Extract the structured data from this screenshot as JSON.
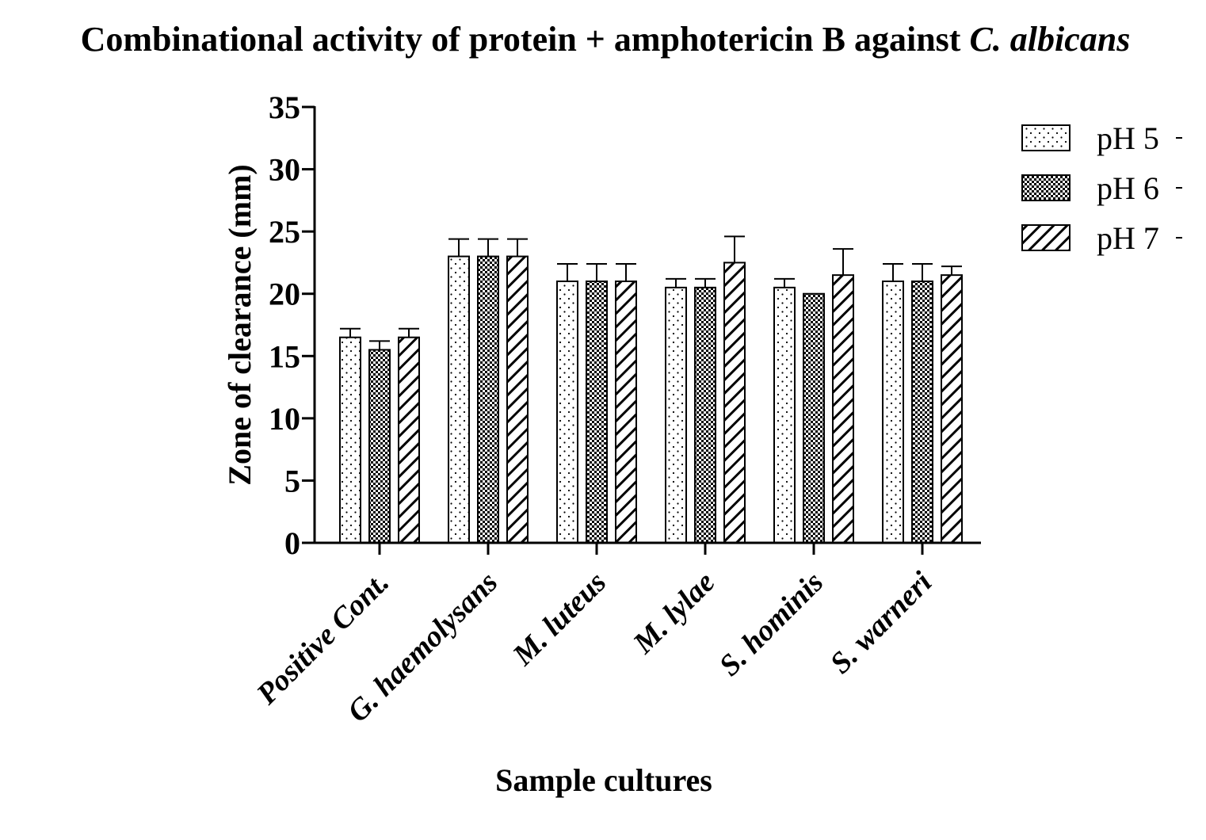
{
  "chart_data": {
    "type": "bar",
    "title": "Combinational activity of protein + amphotericin B against ",
    "title_italic": "C. albicans",
    "xlabel": "Sample cultures",
    "ylabel": "Zone of clearance (mm)",
    "ylim": [
      0,
      35
    ],
    "yticks": [
      "0",
      "5",
      "10",
      "15",
      "20",
      "25",
      "30",
      "35"
    ],
    "categories": [
      "Positive Cont.",
      "G. haemolysans",
      "M. luteus",
      "M. lylae",
      "S. hominis",
      "S. warneri"
    ],
    "series": [
      {
        "name": "pH 5",
        "pattern": "dots",
        "values": [
          16.5,
          23,
          21,
          20.5,
          20.5,
          21
        ],
        "errors": [
          0.7,
          1.4,
          1.4,
          0.7,
          0.7,
          1.4
        ]
      },
      {
        "name": "pH 6",
        "pattern": "checker",
        "values": [
          15.5,
          23,
          21,
          20.5,
          20,
          21
        ],
        "errors": [
          0.7,
          1.4,
          1.4,
          0.7,
          0,
          1.4
        ]
      },
      {
        "name": "pH 7",
        "pattern": "hatch",
        "values": [
          16.5,
          23,
          21,
          22.5,
          21.5,
          21.5
        ],
        "errors": [
          0.7,
          1.4,
          1.4,
          2.1,
          2.1,
          0.7
        ]
      }
    ],
    "grid": false,
    "legend_position": "top-right",
    "colors": {
      "bar_stroke": "#000000",
      "background": "#ffffff"
    }
  }
}
